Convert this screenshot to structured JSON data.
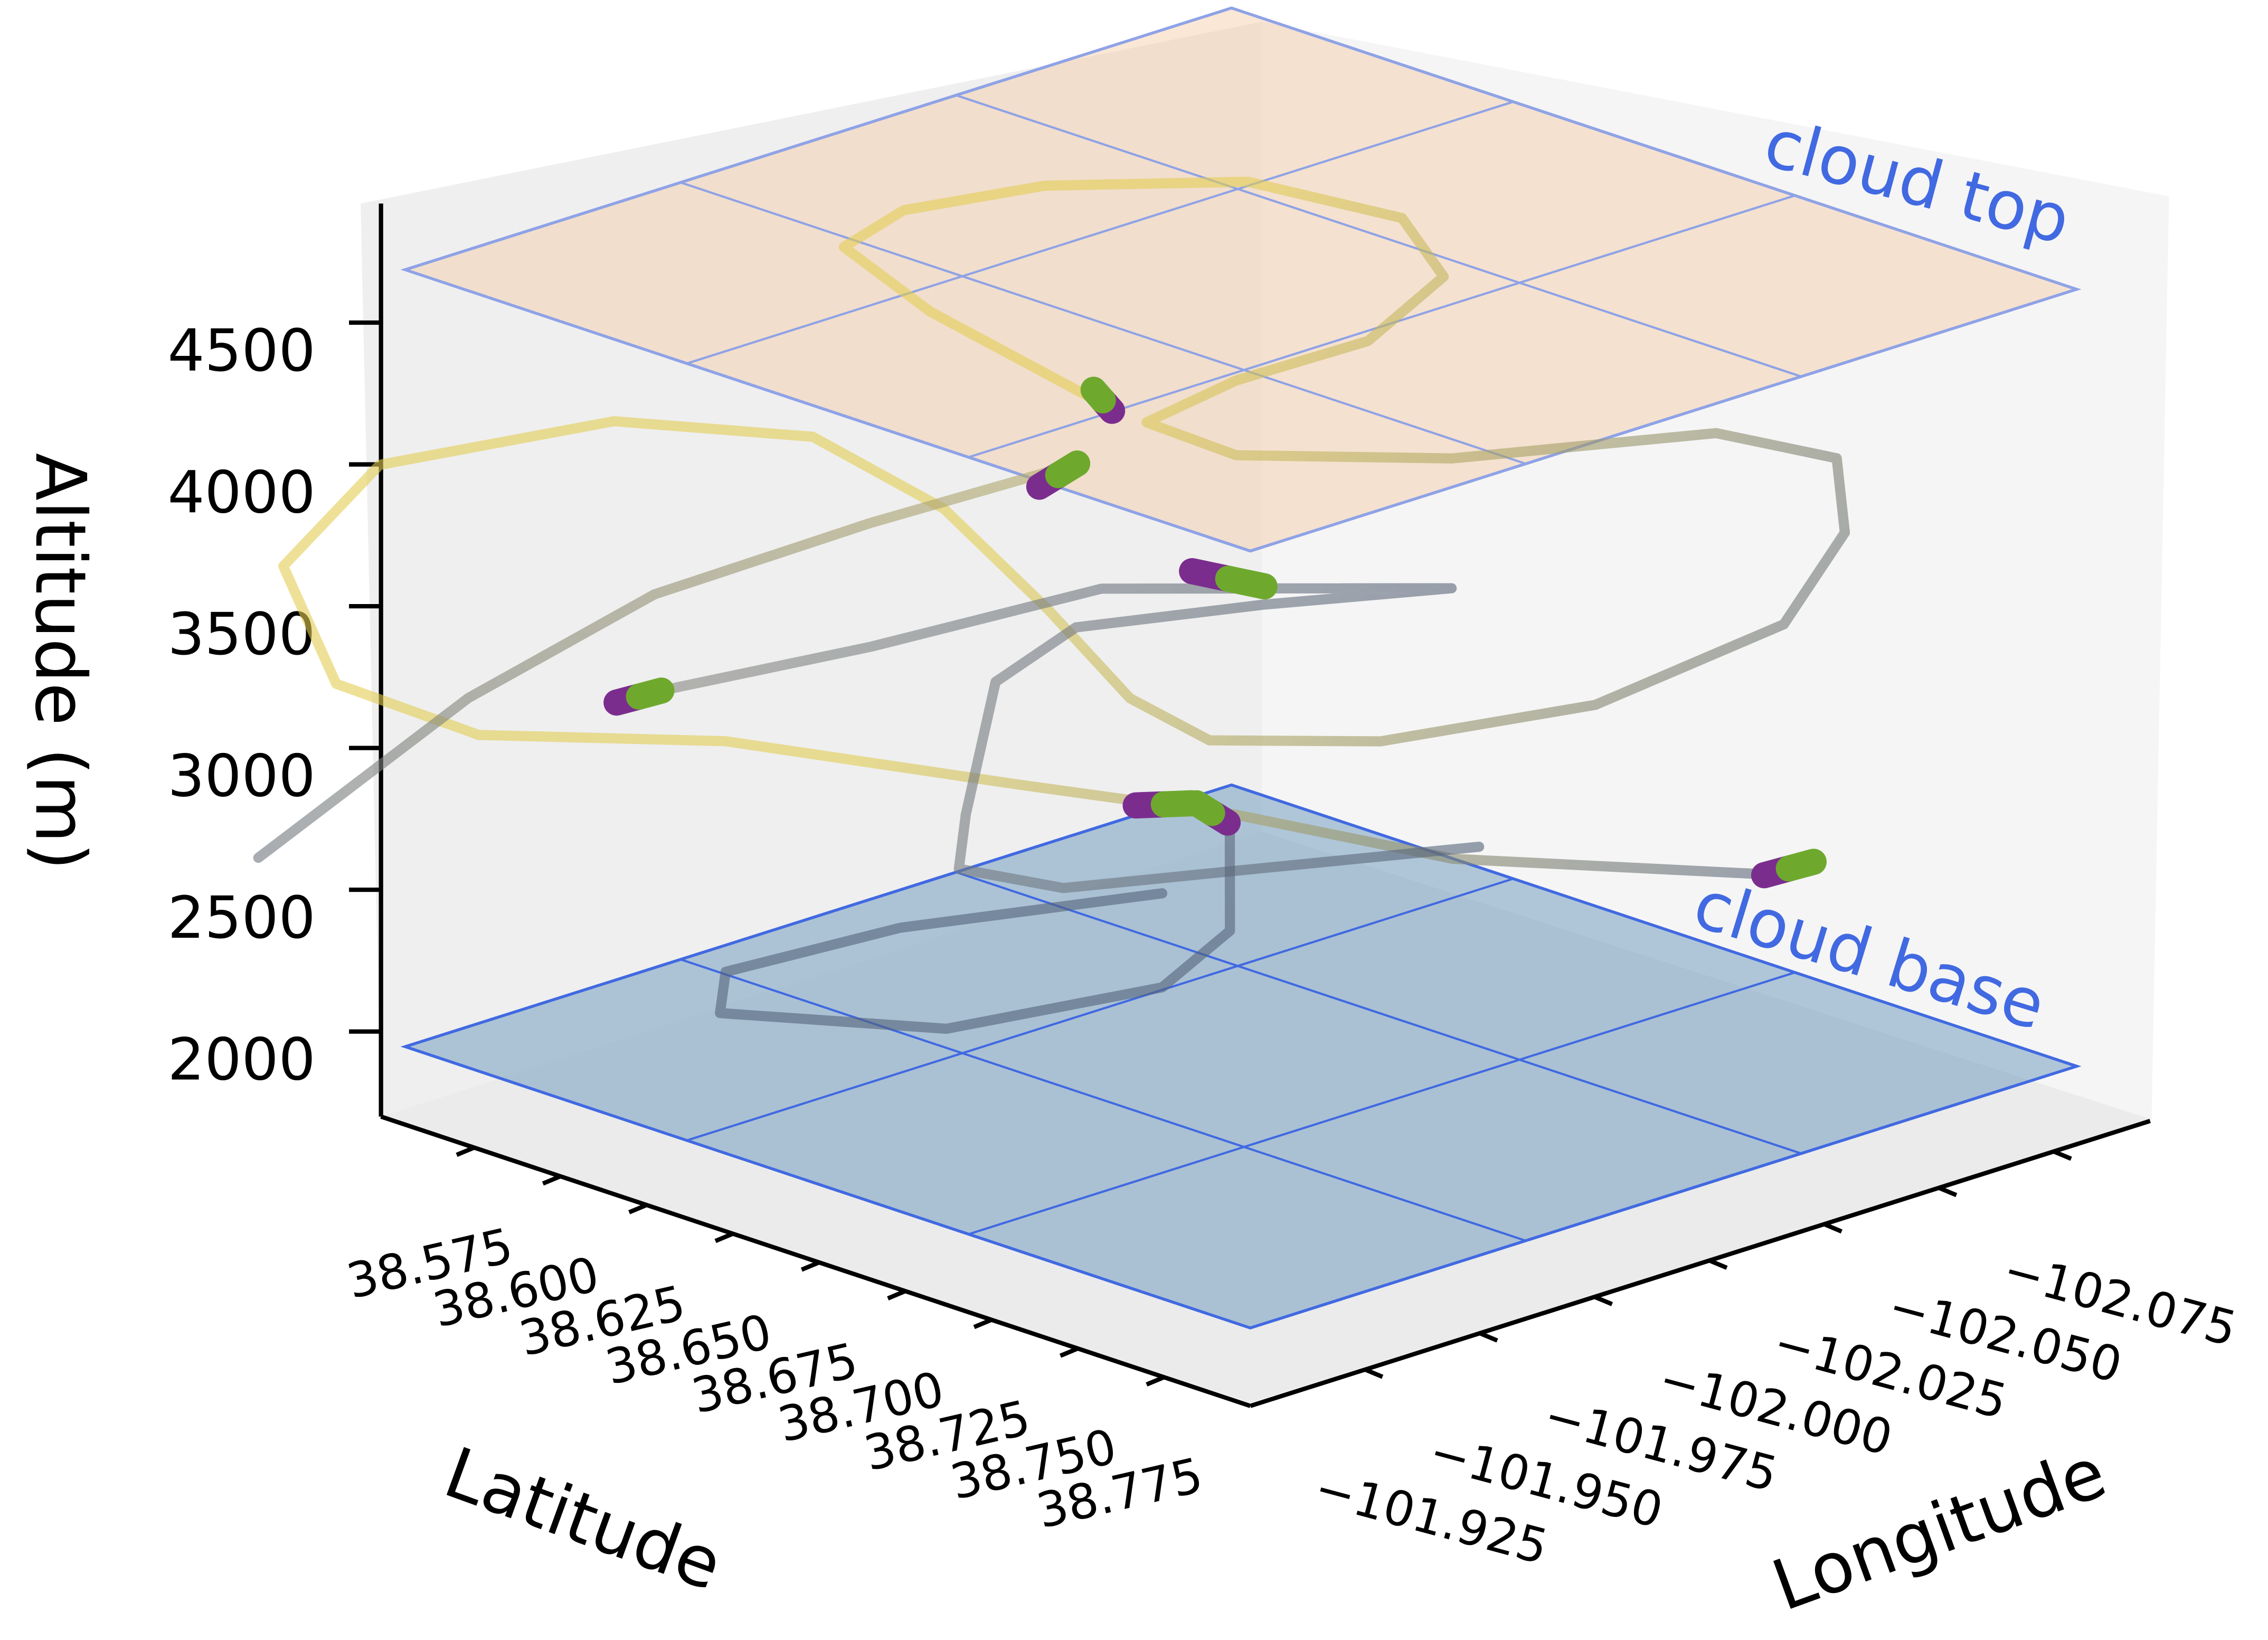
{
  "chart_data": {
    "type": "line3d",
    "xlabel": "Latitude",
    "ylabel": "Longitude",
    "zlabel": "Altitude (m)",
    "xlim": [
      38.548,
      38.8
    ],
    "ylim": [
      -102.096,
      -101.9
    ],
    "zlim": [
      1700,
      4920
    ],
    "xticks": [
      38.575,
      {
        "value": 38.6,
        "label": "38.600"
      },
      38.625,
      {
        "value": 38.65,
        "label": "38.650"
      },
      38.675,
      {
        "value": 38.7,
        "label": "38.700"
      },
      38.725,
      {
        "value": 38.75,
        "label": "38.750"
      },
      38.775
    ],
    "yticks": [
      {
        "value": -101.925,
        "label": "−101.925"
      },
      {
        "value": -101.95,
        "label": "−101.950"
      },
      {
        "value": -101.975,
        "label": "−101.975"
      },
      {
        "value": -102.0,
        "label": "−102.000"
      },
      {
        "value": -102.025,
        "label": "−102.025"
      },
      {
        "value": -102.05,
        "label": "−102.050"
      },
      {
        "value": -102.075,
        "label": "−102.075"
      }
    ],
    "zticks": [
      2000,
      2500,
      3000,
      3500,
      4000,
      4500
    ],
    "colorscale": [
      "#1f3a6e",
      "#8a8a84",
      "#f0d84a"
    ],
    "planes": [
      {
        "label": "cloud base",
        "alt": 1975,
        "lat": [
          38.555,
          38.8
        ],
        "lon": [
          -102.08,
          -101.9
        ],
        "color": "#5b8db8",
        "edge": "#4169e1"
      },
      {
        "label": "cloud top",
        "alt": 4715,
        "lat": [
          38.555,
          38.8
        ],
        "lon": [
          -102.08,
          -101.9
        ],
        "color": "#f4c9a4",
        "edge": "#8ea2e6"
      }
    ],
    "series": [
      {
        "lat": [
          38.713,
          38.646,
          38.605,
          38.597,
          38.606,
          38.633,
          38.671,
          38.703,
          38.721,
          38.72,
          38.726,
          38.728,
          38.76,
          38.786,
          38.789,
          38.798,
          38.767,
          38.751,
          38.718,
          38.687,
          38.676,
          38.656,
          38.622,
          38.584,
          38.549,
          38.529,
          38.529,
          38.551,
          38.575,
          38.6,
          38.635,
          38.673,
          38.711,
          38.755
        ],
        "lon": [
          -101.934,
          -101.946,
          -101.958,
          -101.977,
          -102.001,
          -102.025,
          -102.03,
          -102.015,
          -101.985,
          -101.957,
          -101.933,
          -101.951,
          -101.974,
          -102.012,
          -102.036,
          -102.031,
          -102.041,
          -102.012,
          -101.99,
          -101.976,
          -101.967,
          -101.964,
          -101.967,
          -101.967,
          -101.95,
          -101.914,
          -101.893,
          -101.888,
          -101.901,
          -101.936,
          -101.973,
          -101.992,
          -102.011,
          -102.045
        ],
        "alt": [
          4700,
          4700,
          4700,
          4700,
          4700,
          4700,
          4700,
          4700,
          4700,
          4700,
          4700,
          4500,
          4500,
          4500,
          4300,
          4100,
          3600,
          3400,
          3250,
          3200,
          3350,
          3600,
          3800,
          3900,
          3900,
          3850,
          3600,
          3300,
          3150,
          3050,
          2850,
          2800,
          2700,
          2650
        ]
      },
      {
        "lat": [
          38.646,
          38.618,
          38.594,
          38.576,
          38.567
        ],
        "lon": [
          -101.978,
          -101.954,
          -101.925,
          -101.898,
          -101.859
        ],
        "alt": [
          4000,
          3800,
          3600,
          3300,
          2900
        ]
      },
      {
        "lat": [
          38.6,
          38.629,
          38.661,
          38.686,
          38.704,
          38.672,
          38.643,
          38.637,
          38.635,
          38.633,
          38.65,
          38.668,
          38.684
        ],
        "lon": [
          -101.922,
          -101.946,
          -101.972,
          -101.992,
          -102.016,
          -101.999,
          -101.98,
          -101.967,
          -101.962,
          -101.962,
          -101.972,
          -101.999,
          -102.037
        ],
        "alt": [
          3300,
          3450,
          3650,
          3650,
          3600,
          3500,
          3400,
          3250,
          2800,
          2600,
          2550,
          2550,
          2500
        ]
      },
      {
        "lat": [
          38.653,
          38.661,
          38.664,
          38.652,
          38.613,
          38.608,
          38.632,
          38.66
        ],
        "lon": [
          -102.006,
          -102.0,
          -101.983,
          -101.945,
          -101.925,
          -101.93,
          -101.95,
          -101.986
        ],
        "alt": [
          2600,
          2300,
          2200,
          2200,
          2200,
          2300,
          2450,
          2500
        ]
      }
    ],
    "highlight_colors": [
      "#7b2d8e",
      "#6ea92e"
    ],
    "highlights": [
      {
        "lat": [
          38.716,
          38.704
        ],
        "lon": [
          -101.933,
          -101.938
        ],
        "alt": [
          4700,
          4700
        ]
      },
      {
        "lat": [
          38.651,
          38.646
        ],
        "lon": [
          -101.966,
          -101.978
        ],
        "alt": [
          4000,
          4000
        ]
      },
      {
        "lat": [
          38.666,
          38.683
        ],
        "lon": [
          -101.988,
          -101.991
        ],
        "alt": [
          3650,
          3650
        ]
      },
      {
        "lat": [
          38.599,
          38.6
        ],
        "lon": [
          -101.913,
          -101.922
        ],
        "alt": [
          3300,
          3300
        ]
      },
      {
        "lat": [
          38.655,
          38.662
        ],
        "lon": [
          -101.984,
          -101.991
        ],
        "alt": [
          2800,
          2800
        ]
      },
      {
        "lat": [
          38.663,
          38.65
        ],
        "lon": [
          -101.998,
          -102.001
        ],
        "alt": [
          2700,
          2700
        ]
      },
      {
        "lat": [
          38.756,
          38.757
        ],
        "lon": [
          -102.045,
          -102.055
        ],
        "alt": [
          2650,
          2650
        ]
      }
    ]
  }
}
